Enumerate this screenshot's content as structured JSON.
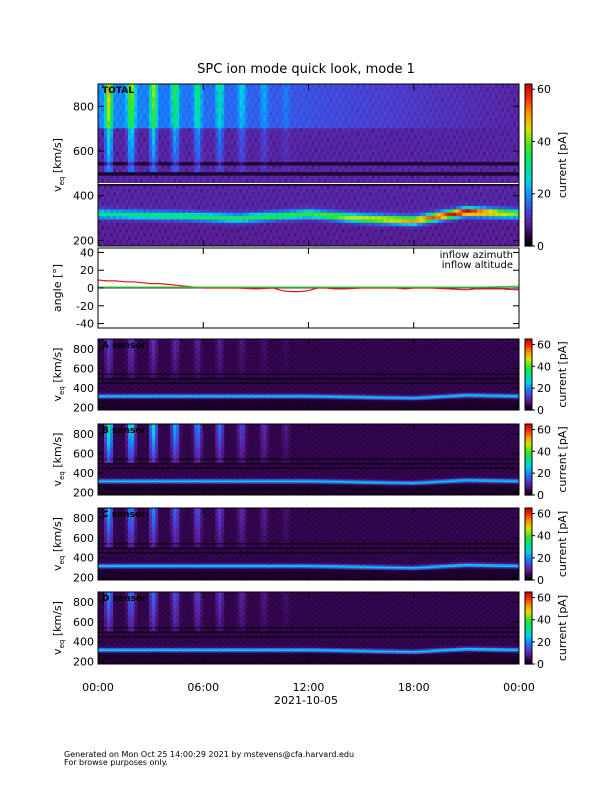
{
  "title": "SPC ion mode quick look, mode 1",
  "colors": {
    "background": "#ffffff",
    "azimuth": "#e8141c",
    "altitude": "#2ecc2e"
  },
  "chart_data": [
    {
      "type": "heatmap",
      "panel": "TOTAL",
      "label": "TOTAL",
      "ylabel": "v_eq [km/s]",
      "ylabel_main": "v",
      "ylabel_sub": "eq",
      "ylabel_unit": "[km/s]",
      "ylim": [
        175,
        900
      ],
      "yticks": [
        200,
        400,
        600,
        800
      ],
      "colorbar": {
        "label": "current [pA]",
        "range": [
          0,
          62
        ],
        "ticks": [
          0,
          20,
          40,
          60
        ]
      },
      "bulk_speed_kms": [
        [
          0,
          320
        ],
        [
          5,
          310
        ],
        [
          8,
          300
        ],
        [
          12,
          320
        ],
        [
          15,
          300
        ],
        [
          18,
          290
        ],
        [
          21,
          330
        ],
        [
          24,
          320
        ]
      ],
      "peak_current_pA": [
        [
          0,
          22
        ],
        [
          6,
          25
        ],
        [
          12,
          28
        ],
        [
          16,
          38
        ],
        [
          19,
          45
        ],
        [
          21,
          55
        ],
        [
          24,
          30
        ]
      ]
    },
    {
      "type": "line",
      "panel": "angle",
      "ylabel": "angle [°]",
      "ylim": [
        -45,
        45
      ],
      "yticks": [
        -40,
        -20,
        0,
        20,
        40
      ],
      "legend": [
        "inflow azimuth",
        "inflow altitude"
      ],
      "legend_position": "top-right",
      "series": [
        {
          "name": "inflow azimuth",
          "x": [
            0,
            0.5,
            1,
            1.5,
            2,
            2.5,
            3,
            3.5,
            4,
            4.5,
            5,
            5.5,
            6,
            7,
            8,
            9,
            10,
            10.5,
            11,
            11.5,
            12,
            12.5,
            13,
            13.5,
            14,
            15,
            16,
            17,
            17.5,
            18,
            19,
            20,
            21,
            21.5,
            22,
            23,
            24
          ],
          "y": [
            9,
            8,
            8,
            7,
            7,
            6,
            5,
            5,
            4,
            3,
            2,
            1,
            0,
            0,
            0,
            -1,
            0,
            -3,
            -4,
            -4,
            -3,
            0,
            0,
            -1,
            -1,
            0,
            0,
            0,
            -1,
            0,
            0,
            -1,
            -2,
            -1,
            -1,
            -1,
            -2
          ]
        },
        {
          "name": "inflow altitude",
          "x": [
            0,
            2,
            4,
            6,
            8,
            10,
            12,
            14,
            16,
            18,
            20,
            22,
            24
          ],
          "y": [
            1,
            1,
            1,
            1,
            1,
            1,
            1,
            1,
            1,
            1,
            1,
            1,
            2
          ]
        }
      ]
    },
    {
      "type": "heatmap",
      "panel": "A sensor",
      "label": "A sensor",
      "ylabel": "v_eq [km/s]",
      "ylabel_main": "v",
      "ylabel_sub": "eq",
      "ylabel_unit": "[km/s]",
      "ylim": [
        175,
        900
      ],
      "yticks": [
        200,
        400,
        600,
        800
      ],
      "colorbar": {
        "label": "current [pA]",
        "range": [
          0,
          65
        ],
        "ticks": [
          0,
          20,
          40,
          60
        ]
      },
      "bulk_speed_kms": [
        [
          0,
          320
        ],
        [
          12,
          320
        ],
        [
          18,
          300
        ],
        [
          21,
          330
        ],
        [
          24,
          320
        ]
      ]
    },
    {
      "type": "heatmap",
      "panel": "B sensor",
      "label": "B sensor",
      "ylabel": "v_eq [km/s]",
      "ylabel_main": "v",
      "ylabel_sub": "eq",
      "ylabel_unit": "[km/s]",
      "ylim": [
        175,
        900
      ],
      "yticks": [
        200,
        400,
        600,
        800
      ],
      "colorbar": {
        "label": "current [pA]",
        "range": [
          0,
          65
        ],
        "ticks": [
          0,
          20,
          40,
          60
        ]
      },
      "bulk_speed_kms": [
        [
          0,
          320
        ],
        [
          12,
          320
        ],
        [
          18,
          300
        ],
        [
          21,
          330
        ],
        [
          24,
          320
        ]
      ]
    },
    {
      "type": "heatmap",
      "panel": "C sensor",
      "label": "C sensor",
      "ylabel": "v_eq [km/s]",
      "ylabel_main": "v",
      "ylabel_sub": "eq",
      "ylabel_unit": "[km/s]",
      "ylim": [
        175,
        900
      ],
      "yticks": [
        200,
        400,
        600,
        800
      ],
      "colorbar": {
        "label": "current [pA]",
        "range": [
          0,
          65
        ],
        "ticks": [
          0,
          20,
          40,
          60
        ]
      },
      "bulk_speed_kms": [
        [
          0,
          320
        ],
        [
          12,
          320
        ],
        [
          18,
          300
        ],
        [
          21,
          330
        ],
        [
          24,
          320
        ]
      ]
    },
    {
      "type": "heatmap",
      "panel": "D sensor",
      "label": "D sensor",
      "ylabel": "v_eq [km/s]",
      "ylabel_main": "v",
      "ylabel_sub": "eq",
      "ylabel_unit": "[km/s]",
      "ylim": [
        175,
        900
      ],
      "yticks": [
        200,
        400,
        600,
        800
      ],
      "colorbar": {
        "label": "current [pA]",
        "range": [
          0,
          65
        ],
        "ticks": [
          0,
          20,
          40,
          60
        ]
      },
      "bulk_speed_kms": [
        [
          0,
          320
        ],
        [
          12,
          320
        ],
        [
          18,
          300
        ],
        [
          21,
          330
        ],
        [
          24,
          320
        ]
      ]
    }
  ],
  "x_axis": {
    "ticks": [
      "00:00",
      "06:00",
      "12:00",
      "18:00",
      "00:00"
    ],
    "tick_hours": [
      0,
      6,
      12,
      18,
      24
    ],
    "date": "2021-10-05"
  },
  "footer": {
    "line1": "Generated on Mon Oct 25 14:00:29 2021 by mstevens@cfa.harvard.edu",
    "line2": "For browse purposes only."
  }
}
